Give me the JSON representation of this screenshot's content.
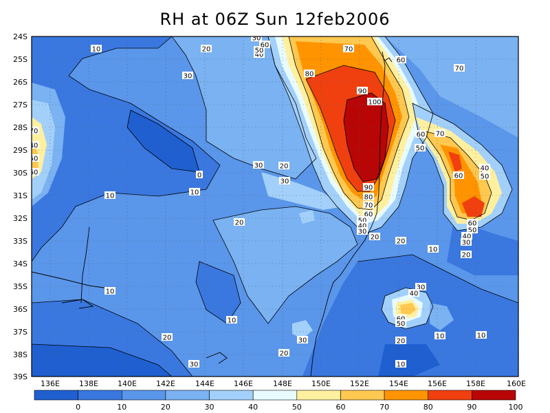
{
  "title": "RH at 06Z Sun 12feb2006",
  "lat_ticks": [
    "24S",
    "25S",
    "26S",
    "27S",
    "28S",
    "29S",
    "30S",
    "31S",
    "32S",
    "33S",
    "34S",
    "35S",
    "36S",
    "37S",
    "38S",
    "39S"
  ],
  "lon_ticks": [
    "136E",
    "138E",
    "140E",
    "142E",
    "144E",
    "146E",
    "148E",
    "150E",
    "152E",
    "154E",
    "156E",
    "158E",
    "160E"
  ],
  "colorbar": {
    "labels": [
      "0",
      "10",
      "20",
      "30",
      "40",
      "50",
      "60",
      "70",
      "80",
      "90",
      "100"
    ],
    "colors": [
      "#1f5fd0",
      "#3a78e0",
      "#5a96ea",
      "#7ab2f2",
      "#a2d0fa",
      "#e8fbff",
      "#fff0a0",
      "#ffc850",
      "#ff9400",
      "#f04010",
      "#b80606"
    ]
  },
  "contour_labels": [
    {
      "text": "10"
    },
    {
      "text": "20"
    },
    {
      "text": "30"
    },
    {
      "text": "40"
    },
    {
      "text": "50"
    },
    {
      "text": "60"
    },
    {
      "text": "70"
    },
    {
      "text": "80"
    },
    {
      "text": "90"
    },
    {
      "text": "100"
    },
    {
      "text": "60"
    },
    {
      "text": "70"
    },
    {
      "text": "30"
    },
    {
      "text": "30"
    },
    {
      "text": "20"
    },
    {
      "text": "0"
    },
    {
      "text": "10"
    },
    {
      "text": "10"
    },
    {
      "text": "30"
    },
    {
      "text": "20"
    },
    {
      "text": "20"
    },
    {
      "text": "90"
    },
    {
      "text": "80"
    },
    {
      "text": "70"
    },
    {
      "text": "60"
    },
    {
      "text": "50"
    },
    {
      "text": "40"
    },
    {
      "text": "30"
    },
    {
      "text": "20"
    },
    {
      "text": "20"
    },
    {
      "text": "10"
    },
    {
      "text": "60"
    },
    {
      "text": "50"
    },
    {
      "text": "70"
    },
    {
      "text": "60"
    },
    {
      "text": "40"
    },
    {
      "text": "50"
    },
    {
      "text": "60"
    },
    {
      "text": "50"
    },
    {
      "text": "40"
    },
    {
      "text": "30"
    },
    {
      "text": "20"
    },
    {
      "text": "10"
    },
    {
      "text": "30"
    },
    {
      "text": "40"
    },
    {
      "text": "60"
    },
    {
      "text": "50"
    },
    {
      "text": "10"
    },
    {
      "text": "20"
    },
    {
      "text": "30"
    },
    {
      "text": "20"
    },
    {
      "text": "10"
    },
    {
      "text": "20"
    },
    {
      "text": "30"
    },
    {
      "text": "10"
    },
    {
      "text": "10"
    },
    {
      "text": "40"
    },
    {
      "text": "50"
    },
    {
      "text": "60"
    },
    {
      "text": "70"
    }
  ]
}
